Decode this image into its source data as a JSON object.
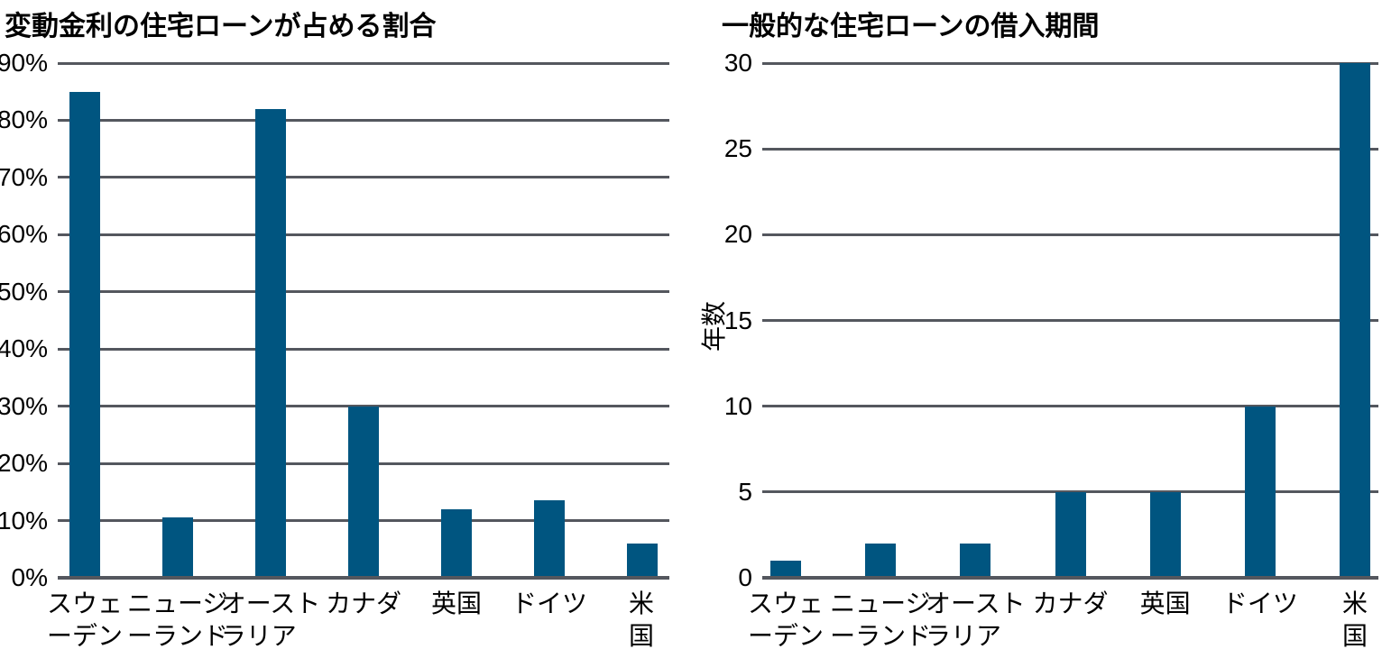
{
  "figure": {
    "background": "#ffffff",
    "text_color": "#000000"
  },
  "colors": {
    "bar": "#005580",
    "gridline": "#54575E"
  },
  "chart_data": [
    {
      "type": "bar",
      "title": "変動金利の住宅ローンが占める割合",
      "categories": [
        "スウェ\nーデン",
        "ニュージ\nーランド",
        "オースト\nラリア",
        "カナダ",
        "英国",
        "ドイツ",
        "米国"
      ],
      "values": [
        85,
        10.5,
        82,
        30,
        12,
        13.5,
        6
      ],
      "xlabel": "",
      "ylabel": "",
      "ylim": [
        0,
        90
      ],
      "yticks": [
        0,
        10,
        20,
        30,
        40,
        50,
        60,
        70,
        80,
        90
      ],
      "ytick_labels": [
        "0%",
        "10%",
        "20%",
        "30%",
        "40%",
        "50%",
        "60%",
        "70%",
        "80%",
        "90%"
      ],
      "grid": true,
      "legend": false,
      "bar_color": "#005580"
    },
    {
      "type": "bar",
      "title": "一般的な住宅ローンの借入期間",
      "categories": [
        "スウェ\nーデン",
        "ニュージ\nーランド",
        "オースト\nラリア",
        "カナダ",
        "英国",
        "ドイツ",
        "米国"
      ],
      "values": [
        1,
        2,
        2,
        5,
        5,
        10,
        30
      ],
      "xlabel": "",
      "ylabel": "年数",
      "ylim": [
        0,
        30
      ],
      "yticks": [
        0,
        5,
        10,
        15,
        20,
        25,
        30
      ],
      "ytick_labels": [
        "0",
        "5",
        "10",
        "15",
        "20",
        "25",
        "30"
      ],
      "grid": true,
      "legend": false,
      "bar_color": "#005580"
    }
  ]
}
